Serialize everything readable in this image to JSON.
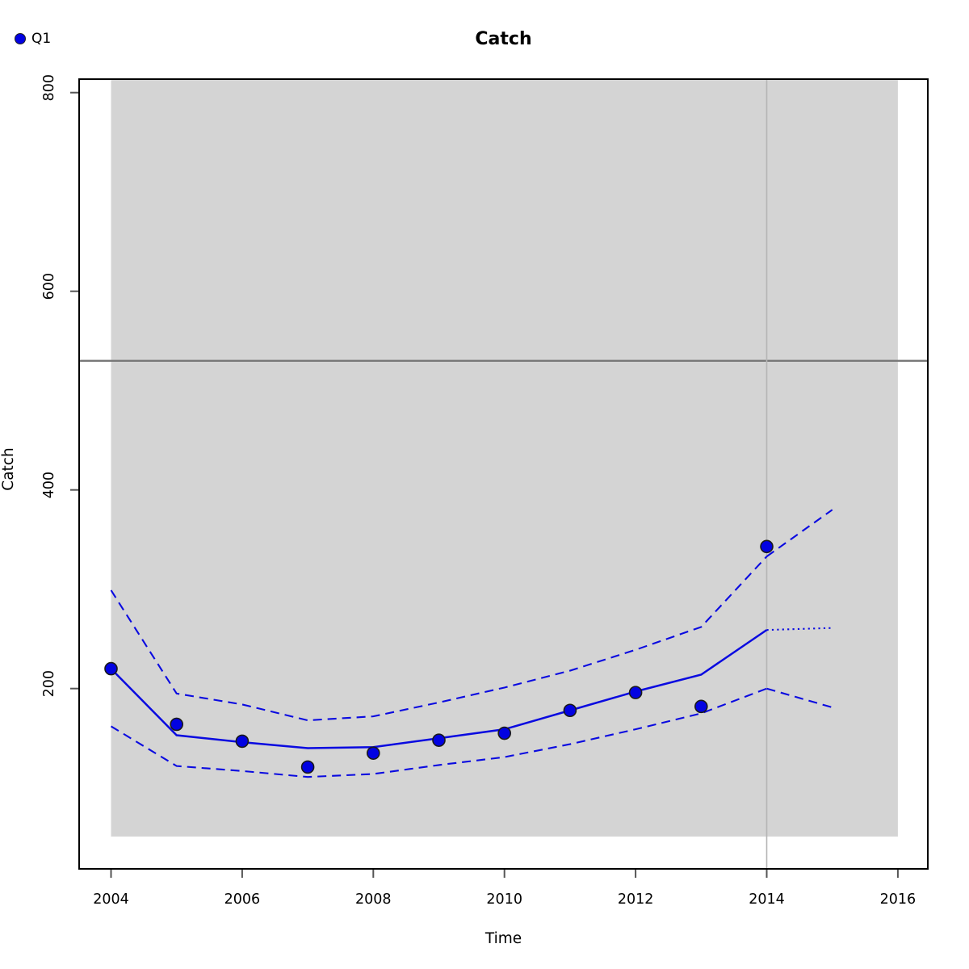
{
  "title": "Catch",
  "legend": {
    "position": "top-left",
    "items": [
      {
        "label": "Q1",
        "marker": "filled-circle",
        "color": "#0202e2"
      }
    ]
  },
  "colors": {
    "series_blue": "#0a0ae0",
    "point_fill": "#0202e2",
    "point_border": "#1a1a1a",
    "shaded_region": "#d4d4d4",
    "reference_line_dark": "#787878",
    "reference_line_light": "#b5b5b5",
    "plot_border": "#000000",
    "tick_mark": "#555555"
  },
  "chart_data": {
    "type": "line",
    "title": "Catch",
    "xlabel": "Time",
    "ylabel": "Catch",
    "xlim": [
      2003.5,
      2016.5
    ],
    "ylim": [
      18,
      814
    ],
    "x_ticks": [
      2004,
      2006,
      2008,
      2010,
      2012,
      2014,
      2016
    ],
    "y_ticks": [
      200,
      400,
      600,
      800
    ],
    "grid": false,
    "legend_position": "top-left",
    "shaded_region": {
      "x_from": 2004,
      "x_to": 2016,
      "y_from": 51,
      "y_to": "top",
      "color": "#d4d4d4"
    },
    "reference_lines": [
      {
        "orientation": "horizontal",
        "value": 530,
        "color": "#787878",
        "style": "solid"
      },
      {
        "orientation": "vertical",
        "value": 2014,
        "color": "#b5b5b5",
        "style": "solid"
      }
    ],
    "x": [
      2004,
      2005,
      2006,
      2007,
      2008,
      2009,
      2010,
      2011,
      2012,
      2013,
      2014
    ],
    "series": [
      {
        "name": "upper-confidence-band",
        "style": "dashed",
        "color": "#0a0ae0",
        "values": [
          299,
          195,
          184,
          168,
          172,
          186,
          201,
          218,
          239,
          262,
          333
        ]
      },
      {
        "name": "lower-confidence-band",
        "style": "dashed",
        "color": "#0a0ae0",
        "values": [
          162,
          122,
          117,
          111,
          114,
          123,
          131,
          144,
          159,
          175,
          200
        ]
      },
      {
        "name": "forecast-upper",
        "style": "dashed",
        "color": "#0a0ae0",
        "x": [
          2014,
          2015
        ],
        "values": [
          333,
          380
        ]
      },
      {
        "name": "forecast-lower",
        "style": "dashed",
        "color": "#0a0ae0",
        "x": [
          2014,
          2015
        ],
        "values": [
          200,
          181
        ]
      },
      {
        "name": "forecast-fit",
        "style": "dotted",
        "color": "#0a0ae0",
        "x": [
          2014,
          2015
        ],
        "values": [
          259,
          261
        ]
      },
      {
        "name": "fitted-line",
        "style": "solid",
        "color": "#0a0ae0",
        "values": [
          220,
          153,
          146,
          140,
          141,
          150,
          159,
          178,
          197,
          214,
          259
        ]
      },
      {
        "name": "Q1-observations",
        "style": "points",
        "color": "#0202e2",
        "values": [
          220,
          164,
          147,
          121,
          135,
          148,
          155,
          178,
          196,
          182,
          343
        ]
      }
    ]
  }
}
